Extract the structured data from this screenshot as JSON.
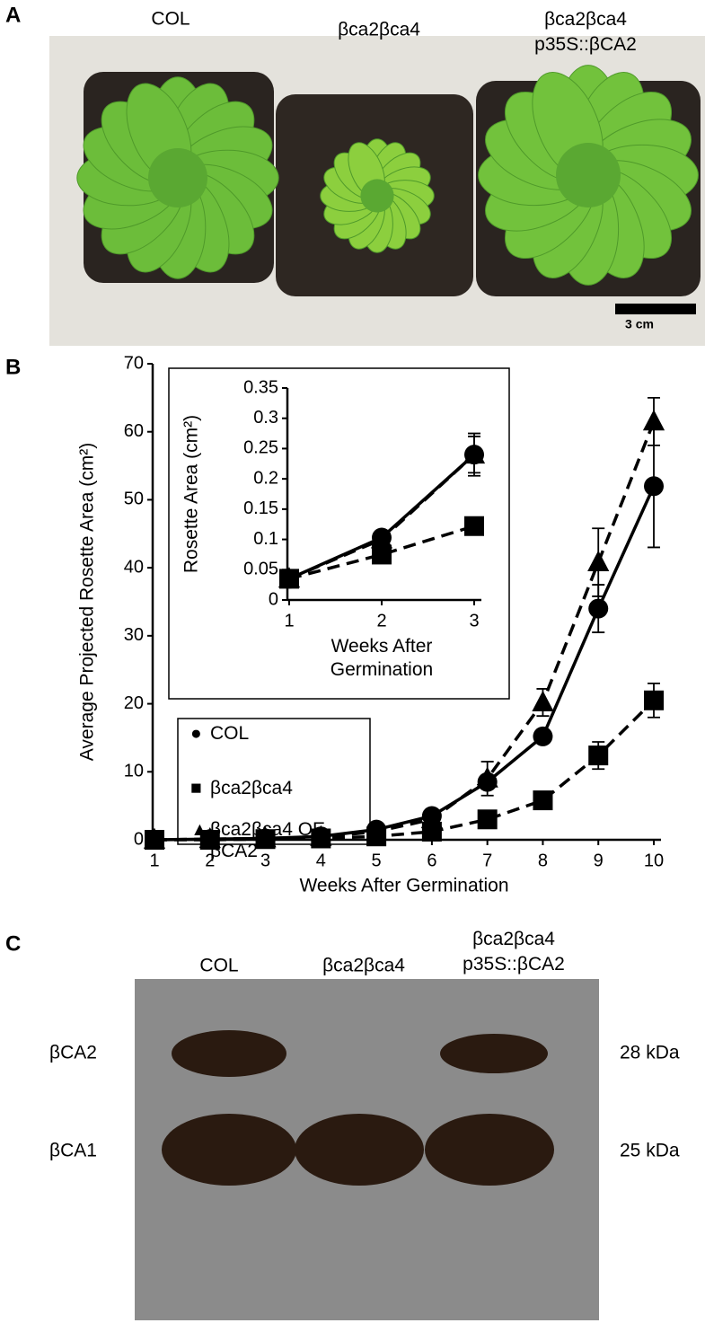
{
  "panel_a": {
    "letter": "A",
    "labels": [
      "COL",
      "βca2βca4",
      "βca2βca4 p35S::βCA2"
    ],
    "scale_bar": "3 cm"
  },
  "panel_b": {
    "letter": "B"
  },
  "chart_data": [
    {
      "type": "line",
      "x_label": "Weeks After Germination",
      "y_label": "Average Projected Rosette Area (cm²)",
      "x": [
        1,
        2,
        3,
        4,
        5,
        6,
        7,
        8,
        9,
        10
      ],
      "xlim": [
        1,
        10
      ],
      "xticks": [
        1,
        2,
        3,
        4,
        5,
        6,
        7,
        8,
        9,
        10
      ],
      "ylim": [
        0,
        70
      ],
      "yticks": [
        0,
        10,
        20,
        30,
        40,
        50,
        60,
        70
      ],
      "series": [
        {
          "name": "COL",
          "color": "#000000",
          "marker": "circle",
          "line_style": "solid",
          "values": [
            0,
            0.1,
            0.2,
            0.5,
            1.5,
            3.5,
            8.5,
            15.2,
            34,
            52
          ],
          "errors": [
            null,
            null,
            null,
            null,
            null,
            null,
            1,
            null,
            3.5,
            9
          ]
        },
        {
          "name": "βca2βca4",
          "color": "#000000",
          "marker": "square",
          "line_style": "dashed",
          "values": [
            0,
            0,
            0.1,
            0.2,
            0.5,
            1.2,
            3,
            5.8,
            12.4,
            20.5
          ],
          "errors": [
            null,
            null,
            null,
            null,
            null,
            null,
            null,
            null,
            2,
            2.5
          ]
        },
        {
          "name": "βca2βca4 OE βCA2",
          "color": "#000000",
          "marker": "triangle",
          "line_style": "dashed",
          "values": [
            0,
            0.1,
            0.2,
            0.4,
            1.2,
            3,
            9,
            20.2,
            40.8,
            61.5
          ],
          "errors": [
            null,
            null,
            null,
            null,
            null,
            null,
            2.5,
            2,
            5,
            3.5
          ]
        }
      ]
    },
    {
      "type": "line",
      "x_label": "Weeks After Germination",
      "y_label": "Rosette Area (cm²)",
      "x": [
        1,
        2,
        3
      ],
      "xlim": [
        1,
        3
      ],
      "xticks": [
        1,
        2,
        3
      ],
      "ylim": [
        0,
        0.35
      ],
      "yticks": [
        0,
        0.05,
        0.1,
        0.15,
        0.2,
        0.25,
        0.3,
        0.35
      ],
      "series": [
        {
          "color": "#000000",
          "marker": "triangle",
          "line_style": "dashed",
          "values": [
            0.035,
            0.1,
            0.24
          ],
          "errors": [
            null,
            null,
            0.035
          ]
        },
        {
          "color": "#000000",
          "marker": "square",
          "line_style": "dashed",
          "values": [
            0.035,
            0.075,
            0.122
          ],
          "errors": [
            null,
            null,
            null
          ]
        },
        {
          "color": "#000000",
          "marker": "circle",
          "line_style": "solid",
          "values": [
            0.035,
            0.103,
            0.24
          ],
          "errors": [
            null,
            null,
            0.03
          ]
        }
      ]
    }
  ],
  "panel_c": {
    "letter": "C",
    "lanes": [
      "COL",
      "βca2βca4",
      "βca2βca4 p35S::βCA2"
    ],
    "bands": [
      "βCA2",
      "βCA1"
    ],
    "sizes": [
      "28 kDa",
      "25 kDa"
    ]
  }
}
